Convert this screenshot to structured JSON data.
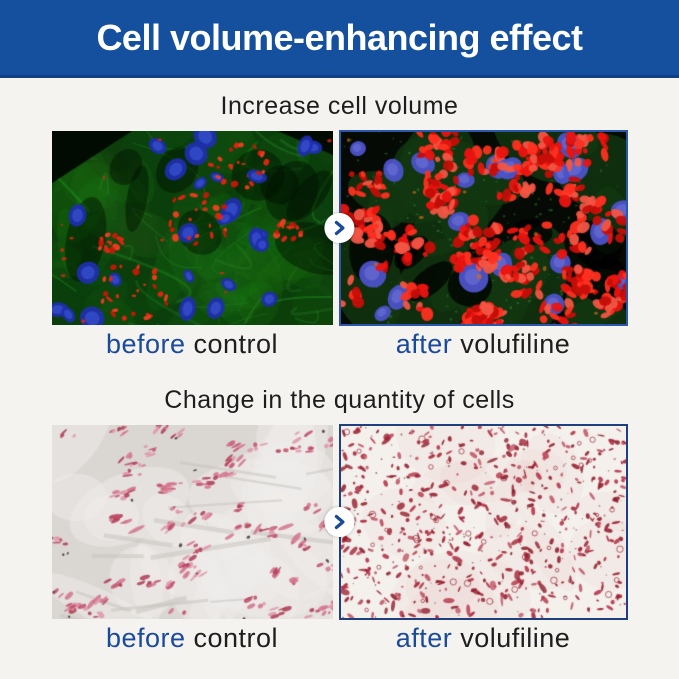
{
  "banner": {
    "title": "Cell volume-enhancing effect"
  },
  "colors": {
    "banner_bg": "#14509e",
    "accent_blue": "#1a4a9c",
    "border_blue_top_pair": "#2b57aa",
    "border_blue_bottom_pair": "#1f3f7d",
    "page_bg": "#f4f3f0"
  },
  "icons": {
    "arrow": "chevron-right-icon"
  },
  "sections": [
    {
      "title": "Increase cell volume",
      "before_highlight": "before",
      "before_rest": "control",
      "after_highlight": "after",
      "after_rest": "volufiline",
      "left_image_desc": "fluorescence micrograph, control: green tissue with blue nuclei and sparse red lipid rings",
      "right_image_desc": "fluorescence micrograph, volufiline: dense bright red lipid clusters with blue nuclei"
    },
    {
      "title": "Change in the quantity of cells",
      "before_highlight": "before",
      "before_rest": "control",
      "after_highlight": "after",
      "after_rest": "volufiline",
      "left_image_desc": "histology micrograph, control: pale field with sparse red-stained cells",
      "right_image_desc": "histology micrograph, volufiline: field densely filled with red-stained cells"
    }
  ]
}
